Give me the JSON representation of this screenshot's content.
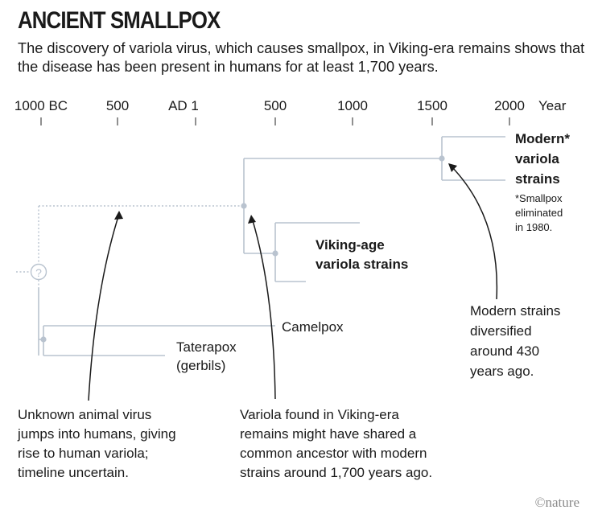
{
  "header": {
    "title": "ANCIENT SMALLPOX",
    "subtitle": "The discovery of variola virus, which causes smallpox, in Viking-era remains shows that the disease has been present in humans for at least 1,700 years."
  },
  "axis": {
    "ticks": [
      "1000 BC",
      "500",
      "AD 1",
      "500",
      "1000",
      "1500",
      "2000"
    ],
    "unit": "Year"
  },
  "tree": {
    "unknown_marker": "?",
    "modern": {
      "line1": "Modern*",
      "line2": "variola",
      "line3": "strains",
      "footnote": [
        "*Smallpox",
        "eliminated",
        "in 1980."
      ]
    },
    "viking": {
      "line1": "Viking-age",
      "line2": "variola strains"
    },
    "camelpox": "Camelpox",
    "taterapox": {
      "line1": "Taterapox",
      "line2": "(gerbils)"
    }
  },
  "annotations": {
    "modern_strains": [
      "Modern strains",
      "diversified",
      "around 430",
      "years ago."
    ],
    "unknown_virus": [
      "Unknown animal virus",
      "jumps into humans, giving",
      "rise to human variola;",
      "timeline uncertain."
    ],
    "viking_ancestor": [
      "Variola found in Viking-era",
      "remains might have shared a",
      "common ancestor with modern",
      "strains around 1,700 years ago."
    ]
  },
  "credit": "©nature",
  "colors": {
    "branch": "#b9c3cf",
    "text": "#1a1a1a"
  }
}
